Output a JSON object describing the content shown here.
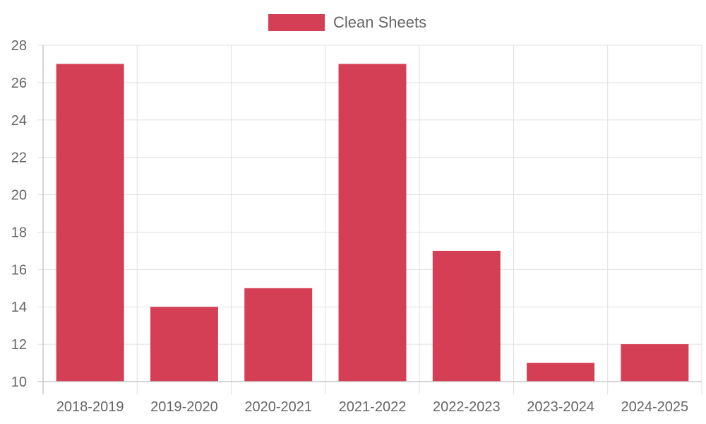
{
  "chart_data": {
    "type": "bar",
    "categories": [
      "2018-2019",
      "2019-2020",
      "2020-2021",
      "2021-2022",
      "2022-2023",
      "2023-2024",
      "2024-2025"
    ],
    "series": [
      {
        "name": "Clean Sheets",
        "values": [
          27,
          14,
          15,
          27,
          17,
          11,
          12
        ]
      }
    ],
    "ylim": [
      10,
      28
    ],
    "yticks": [
      10,
      12,
      14,
      16,
      18,
      20,
      22,
      24,
      26,
      28
    ],
    "grid": true,
    "legend": "top-center",
    "colors": {
      "bar": "#d43f56",
      "grid": "#e0e0e0",
      "axis": "#c8c8c8",
      "text": "#666666"
    }
  }
}
